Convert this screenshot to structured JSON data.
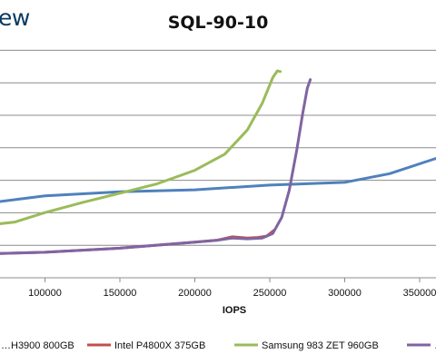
{
  "brand": {
    "text": "ew"
  },
  "chart_data": {
    "type": "line",
    "title": "SQL-90-10",
    "xlabel": "IOPS",
    "ylabel": "",
    "x_ticks": [
      100000,
      150000,
      200000,
      250000,
      300000,
      350000
    ],
    "x_tick_labels": [
      "100000",
      "150000",
      "200000",
      "250000",
      "300000",
      "350000"
    ],
    "xlim": [
      68000,
      385000
    ],
    "grid": true,
    "legend_position": "bottom",
    "series": [
      {
        "name": "…H3900 800GB",
        "color": "#4f81bd",
        "points": [
          [
            68000,
            1.13
          ],
          [
            100000,
            1.22
          ],
          [
            150000,
            1.28
          ],
          [
            200000,
            1.31
          ],
          [
            250000,
            1.38
          ],
          [
            300000,
            1.42
          ],
          [
            330000,
            1.55
          ],
          [
            360000,
            1.77
          ],
          [
            385000,
            1.9
          ]
        ]
      },
      {
        "name": "Intel P4800X 375GB",
        "color": "#c0504d",
        "points": [
          [
            68000,
            0.36
          ],
          [
            100000,
            0.38
          ],
          [
            150000,
            0.44
          ],
          [
            200000,
            0.53
          ],
          [
            215000,
            0.56
          ],
          [
            225000,
            0.61
          ],
          [
            235000,
            0.59
          ],
          [
            242000,
            0.6
          ],
          [
            248000,
            0.62
          ],
          [
            253000,
            0.71
          ]
        ]
      },
      {
        "name": "Samsung 983 ZET 960GB",
        "color": "#9bbb59",
        "points": [
          [
            68000,
            0.8
          ],
          [
            80000,
            0.83
          ],
          [
            100000,
            0.97
          ],
          [
            125000,
            1.12
          ],
          [
            150000,
            1.26
          ],
          [
            175000,
            1.4
          ],
          [
            200000,
            1.6
          ],
          [
            220000,
            1.84
          ],
          [
            235000,
            2.2
          ],
          [
            245000,
            2.6
          ],
          [
            252000,
            2.98
          ],
          [
            255000,
            3.08
          ],
          [
            257000,
            3.07
          ]
        ]
      },
      {
        "name": "…",
        "color": "#8064a2",
        "points": [
          [
            68000,
            0.36
          ],
          [
            100000,
            0.38
          ],
          [
            150000,
            0.44
          ],
          [
            200000,
            0.53
          ],
          [
            215000,
            0.56
          ],
          [
            225000,
            0.59
          ],
          [
            235000,
            0.58
          ],
          [
            245000,
            0.59
          ],
          [
            252000,
            0.66
          ],
          [
            258000,
            0.9
          ],
          [
            263000,
            1.3
          ],
          [
            268000,
            1.9
          ],
          [
            272000,
            2.45
          ],
          [
            275000,
            2.82
          ],
          [
            277000,
            2.95
          ]
        ]
      }
    ]
  }
}
